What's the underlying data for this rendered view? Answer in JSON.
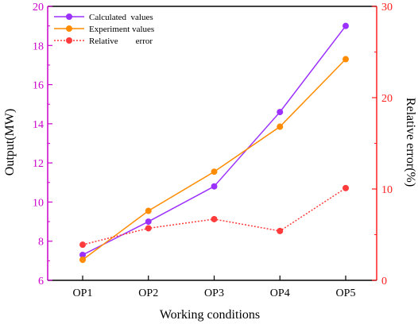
{
  "chart_data": {
    "type": "line",
    "categories": [
      "OP1",
      "OP2",
      "OP3",
      "OP4",
      "OP5"
    ],
    "xlabel": "Working conditions",
    "ylabel_left": "Output(MW)",
    "ylabel_right": "Relative error(%)",
    "ylim_left": [
      6,
      20
    ],
    "yticks_left": [
      6,
      8,
      10,
      12,
      14,
      16,
      18,
      20
    ],
    "ylim_right": [
      0,
      30
    ],
    "yticks_right": [
      0,
      10,
      20,
      30
    ],
    "grid": false,
    "legend_position": "top-left",
    "series": [
      {
        "name": "Calculated  values",
        "axis": "left",
        "color": "#9b30ff",
        "style": "solid",
        "values": [
          7.3,
          9.0,
          10.8,
          14.6,
          19.0
        ]
      },
      {
        "name": "Experiment values",
        "axis": "left",
        "color": "#ff8c00",
        "style": "solid",
        "values": [
          7.05,
          9.55,
          11.55,
          13.85,
          17.3
        ]
      },
      {
        "name": "Relative        error",
        "axis": "right",
        "color": "#ff3b3b",
        "style": "dotted",
        "values": [
          3.9,
          5.7,
          6.7,
          5.4,
          10.1
        ]
      }
    ],
    "axis_colors": {
      "left": "#cc00cc",
      "right": "#ff2020",
      "x": "#000000"
    }
  }
}
